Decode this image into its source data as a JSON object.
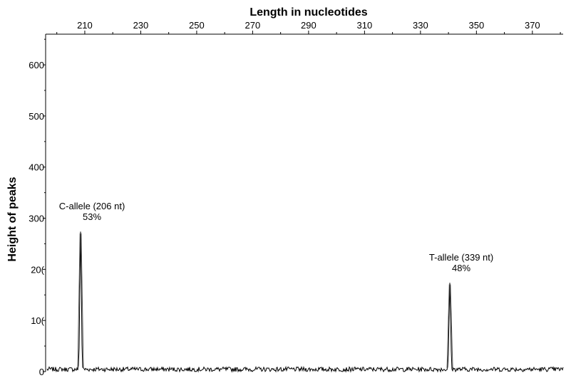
{
  "chart_data": {
    "type": "line",
    "title": "Length in nucleotides",
    "xlabel": "",
    "ylabel": "Height of peaks",
    "x_axis_position": "top",
    "xlim": [
      196,
      381
    ],
    "ylim": [
      0,
      660
    ],
    "x_ticks": [
      "210",
      "230",
      "250",
      "270",
      "290",
      "310",
      "330",
      "350",
      "370"
    ],
    "y_ticks": [
      "0",
      "10(",
      "20(",
      "300",
      "400",
      "500",
      "600"
    ],
    "grid": false,
    "series": [
      {
        "color": "#000000",
        "peaks": [
          {
            "x": 208.5,
            "y": 270
          },
          {
            "x": 340.5,
            "y": 170
          }
        ]
      }
    ],
    "annotations": [
      {
        "label": "C-allele (206 nt)",
        "value": "53%",
        "x": 208.5
      },
      {
        "label": "T-allele (339 nt)",
        "value": "48%",
        "x": 340.5
      }
    ]
  }
}
